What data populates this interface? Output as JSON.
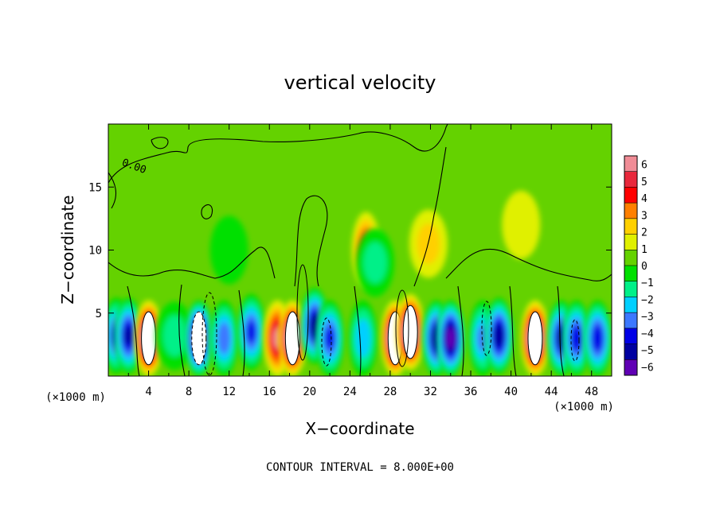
{
  "chart_data": {
    "type": "heatmap",
    "title": "vertical velocity",
    "xlabel": "X−coordinate",
    "ylabel": "Z−coordinate",
    "x_unit_label": "(×1000 m)",
    "x_unit_label_right": "(×1000 m)",
    "xlim": [
      0,
      50
    ],
    "ylim": [
      0,
      20
    ],
    "x_ticks": [
      4,
      8,
      12,
      16,
      20,
      24,
      28,
      32,
      36,
      40,
      44,
      48
    ],
    "y_ticks": [
      5,
      10,
      15
    ],
    "footer": "CONTOUR INTERVAL = 8.000E+00",
    "contour_label": "0.00",
    "colorbar": {
      "ticks": [
        "6",
        "5",
        "4",
        "3",
        "2",
        "1",
        "0",
        "−1",
        "−2",
        "−3",
        "−4",
        "−5",
        "−6"
      ],
      "colors": [
        "#f08c96",
        "#e8283c",
        "#ff0000",
        "#ff7f00",
        "#ffd000",
        "#e0f000",
        "#64d200",
        "#00e000",
        "#00f088",
        "#00d0ff",
        "#3c78ff",
        "#0000e6",
        "#0000a0",
        "#6000b4"
      ]
    },
    "cells": [
      {
        "x": 0.8,
        "z": 3.2,
        "w": -4.5
      },
      {
        "x": 2.0,
        "z": 3.2,
        "w": -5.5
      },
      {
        "x": 4.0,
        "z": 3.0,
        "w": 8.0
      },
      {
        "x": 6.6,
        "z": 3.2,
        "w": -1.5
      },
      {
        "x": 9.0,
        "z": 3.0,
        "w": -8.0
      },
      {
        "x": 11.5,
        "z": 3.0,
        "w": -4.0
      },
      {
        "x": 14.2,
        "z": 3.5,
        "w": -4.5
      },
      {
        "x": 16.8,
        "z": 3.0,
        "w": 5.5
      },
      {
        "x": 18.3,
        "z": 3.0,
        "w": 8.0
      },
      {
        "x": 20.5,
        "z": 4.0,
        "w": -6.0
      },
      {
        "x": 22.0,
        "z": 3.0,
        "w": -4.5
      },
      {
        "x": 25.3,
        "z": 3.0,
        "w": -3.0
      },
      {
        "x": 25.6,
        "z": 10.0,
        "w": 4.0
      },
      {
        "x": 28.5,
        "z": 3.0,
        "w": 8.0
      },
      {
        "x": 30.0,
        "z": 3.5,
        "w": 8.0
      },
      {
        "x": 32.6,
        "z": 3.0,
        "w": -6.0
      },
      {
        "x": 34.0,
        "z": 3.0,
        "w": -7.0
      },
      {
        "x": 37.2,
        "z": 3.0,
        "w": -3.5
      },
      {
        "x": 38.8,
        "z": 3.2,
        "w": -6.0
      },
      {
        "x": 42.4,
        "z": 3.0,
        "w": 8.0
      },
      {
        "x": 45.0,
        "z": 3.0,
        "w": -5.5
      },
      {
        "x": 46.5,
        "z": 3.0,
        "w": -5.0
      },
      {
        "x": 48.6,
        "z": 3.0,
        "w": -5.0
      },
      {
        "x": 26.5,
        "z": 9.0,
        "w": -1.5
      },
      {
        "x": 31.8,
        "z": 10.5,
        "w": 1.5
      },
      {
        "x": 12.0,
        "z": 10.0,
        "w": -0.6
      },
      {
        "x": 41.0,
        "z": 12.0,
        "w": 0.7
      }
    ]
  }
}
